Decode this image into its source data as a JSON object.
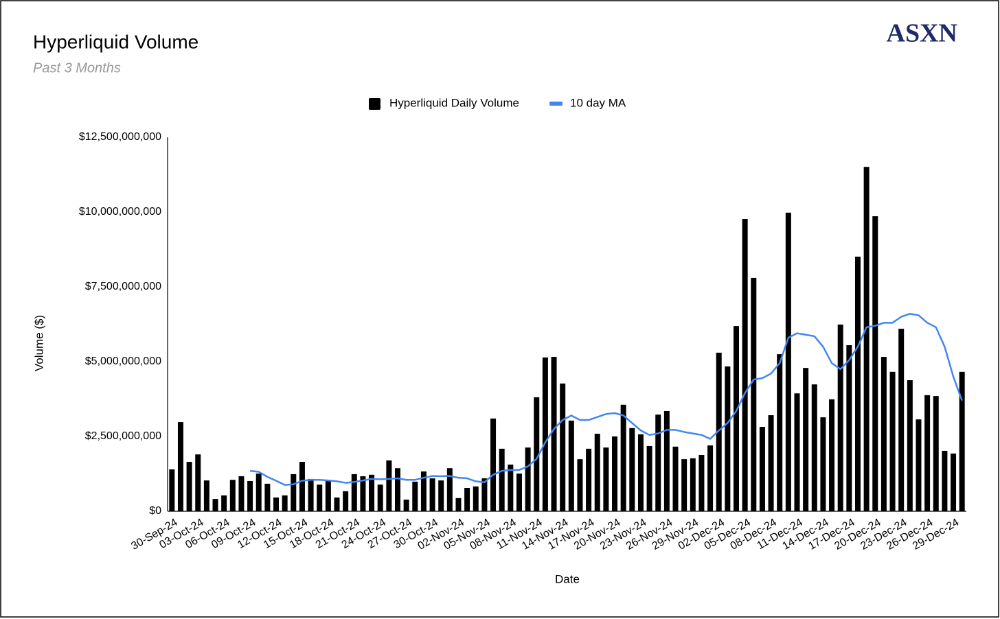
{
  "chart_data": {
    "type": "bar",
    "title": "Hyperliquid Volume",
    "subtitle": "Past 3 Months",
    "brand": "ASXN",
    "x_label": "Date",
    "y_label": "Volume ($)",
    "categories": [
      "30-Sep-24",
      null,
      null,
      "03-Oct-24",
      null,
      null,
      "06-Oct-24",
      null,
      null,
      "09-Oct-24",
      null,
      null,
      "12-Oct-24",
      null,
      null,
      "15-Oct-24",
      null,
      null,
      "18-Oct-24",
      null,
      null,
      "21-Oct-24",
      null,
      null,
      "24-Oct-24",
      null,
      null,
      "27-Oct-24",
      null,
      null,
      "30-Oct-24",
      null,
      null,
      "02-Nov-24",
      null,
      null,
      "05-Nov-24",
      null,
      null,
      "08-Nov-24",
      null,
      null,
      "11-Nov-24",
      null,
      null,
      "14-Nov-24",
      null,
      null,
      "17-Nov-24",
      null,
      null,
      "20-Nov-24",
      null,
      null,
      "23-Nov-24",
      null,
      null,
      "26-Nov-24",
      null,
      null,
      "29-Nov-24",
      null,
      null,
      "02-Dec-24",
      null,
      null,
      "05-Dec-24",
      null,
      null,
      "08-Dec-24",
      null,
      null,
      "11-Dec-24",
      null,
      null,
      "14-Dec-24",
      null,
      null,
      "17-Dec-24",
      null,
      null,
      "20-Dec-24",
      null,
      null,
      "23-Dec-24",
      null,
      null,
      "26-Dec-24",
      null,
      null,
      "29-Dec-24",
      null
    ],
    "series": [
      {
        "name": "Hyperliquid Daily Volume",
        "type": "bar",
        "color": "#000000",
        "values": [
          1400000000,
          2980000000,
          1650000000,
          1900000000,
          1030000000,
          410000000,
          530000000,
          1050000000,
          1170000000,
          1010000000,
          1260000000,
          920000000,
          460000000,
          530000000,
          1240000000,
          1650000000,
          1080000000,
          890000000,
          1030000000,
          460000000,
          670000000,
          1240000000,
          1170000000,
          1220000000,
          890000000,
          1700000000,
          1440000000,
          390000000,
          990000000,
          1330000000,
          1100000000,
          1030000000,
          1440000000,
          440000000,
          780000000,
          830000000,
          1100000000,
          3100000000,
          2090000000,
          1560000000,
          1260000000,
          2130000000,
          3810000000,
          5140000000,
          5160000000,
          4270000000,
          3030000000,
          1740000000,
          2090000000,
          2590000000,
          2130000000,
          2500000000,
          3560000000,
          2780000000,
          2570000000,
          2180000000,
          3230000000,
          3350000000,
          2160000000,
          1740000000,
          1770000000,
          1880000000,
          2200000000,
          5300000000,
          4840000000,
          6190000000,
          9770000000,
          7800000000,
          2820000000,
          3210000000,
          5250000000,
          9980000000,
          3940000000,
          4790000000,
          4240000000,
          3140000000,
          3740000000,
          6240000000,
          5550000000,
          8510000000,
          11510000000,
          9860000000,
          5160000000,
          4660000000,
          6100000000,
          4380000000,
          3070000000,
          3880000000,
          3850000000,
          2020000000,
          1930000000,
          4660000000
        ]
      },
      {
        "name": "10 day MA",
        "type": "line",
        "color": "#4285f4",
        "values": [
          null,
          null,
          null,
          null,
          null,
          null,
          null,
          null,
          null,
          1350000000,
          1320000000,
          1150000000,
          1020000000,
          880000000,
          900000000,
          1020000000,
          1050000000,
          1050000000,
          1030000000,
          1000000000,
          950000000,
          980000000,
          1030000000,
          1080000000,
          1070000000,
          1080000000,
          1100000000,
          1050000000,
          1050000000,
          1120000000,
          1180000000,
          1170000000,
          1180000000,
          1120000000,
          1100000000,
          1000000000,
          970000000,
          1220000000,
          1350000000,
          1380000000,
          1380000000,
          1500000000,
          1750000000,
          2300000000,
          2750000000,
          3050000000,
          3200000000,
          3050000000,
          3050000000,
          3150000000,
          3250000000,
          3280000000,
          3200000000,
          2950000000,
          2700000000,
          2550000000,
          2600000000,
          2720000000,
          2720000000,
          2650000000,
          2600000000,
          2550000000,
          2420000000,
          2700000000,
          2950000000,
          3350000000,
          3950000000,
          4400000000,
          4450000000,
          4600000000,
          4950000000,
          5800000000,
          5950000000,
          5900000000,
          5850000000,
          5500000000,
          4950000000,
          4750000000,
          5050000000,
          5500000000,
          6150000000,
          6200000000,
          6300000000,
          6300000000,
          6500000000,
          6600000000,
          6550000000,
          6300000000,
          6150000000,
          5500000000,
          4500000000,
          3700000000
        ]
      }
    ],
    "ylim": [
      0,
      12500000000
    ],
    "yticks": [
      {
        "value": 0,
        "label": "$0"
      },
      {
        "value": 2500000000,
        "label": "$2,500,000,000"
      },
      {
        "value": 5000000000,
        "label": "$5,000,000,000"
      },
      {
        "value": 7500000000,
        "label": "$7,500,000,000"
      },
      {
        "value": 10000000000,
        "label": "$10,000,000,000"
      },
      {
        "value": 12500000000,
        "label": "$12,500,000,000"
      }
    ],
    "grid": false,
    "legend": "top"
  }
}
